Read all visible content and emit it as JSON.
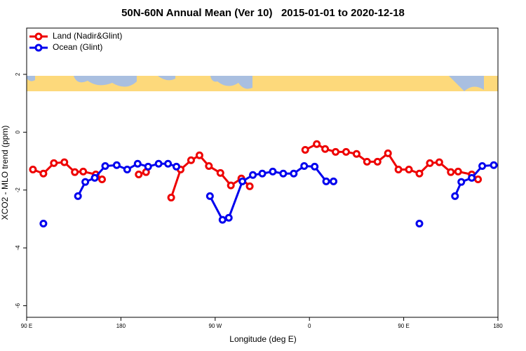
{
  "chart_data": {
    "type": "line",
    "title": "50N-60N Annual Mean (Ver 10)   2015-01-01 to 2020-12-18",
    "x_label": "Longitude (deg E)",
    "y_label": "XCO2 - MLO trend (ppm)",
    "xlim": [
      90,
      540
    ],
    "ylim": [
      -6.4,
      3.6
    ],
    "xticks": [
      {
        "value": 90,
        "label": "90 E"
      },
      {
        "value": 180,
        "label": "180"
      },
      {
        "value": 270,
        "label": "90 W"
      },
      {
        "value": 360,
        "label": "0"
      },
      {
        "value": 450,
        "label": "90 E"
      },
      {
        "value": 540,
        "label": "180"
      }
    ],
    "yticks": [
      2,
      0,
      -2,
      -4,
      -6
    ],
    "legend": "top-left",
    "series": [
      {
        "name": "Land (Nadir&Glint)",
        "color": "#ee0000",
        "x": [
          96,
          106,
          116,
          126,
          136,
          144,
          156,
          162,
          null,
          197,
          204,
          null,
          228,
          237,
          247,
          255,
          264,
          275,
          285,
          295,
          303,
          null,
          356,
          367,
          375,
          385,
          395,
          405,
          415,
          425,
          435,
          445,
          455,
          465,
          475,
          484,
          495,
          502,
          515,
          521
        ],
        "values": [
          -1.29,
          -1.43,
          -1.07,
          -1.04,
          -1.38,
          -1.36,
          -1.46,
          -1.63,
          null,
          -1.46,
          -1.38,
          null,
          -2.26,
          -1.29,
          -0.97,
          -0.8,
          -1.17,
          -1.41,
          -1.84,
          -1.6,
          -1.87,
          null,
          -0.61,
          -0.41,
          -0.58,
          -0.68,
          -0.68,
          -0.75,
          -1.02,
          -1.02,
          -0.73,
          -1.29,
          -1.29,
          -1.43,
          -1.07,
          -1.04,
          -1.38,
          -1.36,
          -1.46,
          -1.63
        ]
      },
      {
        "name": "Ocean (Glint)",
        "color": "#0000ee",
        "x": [
          106,
          null,
          139,
          146,
          155,
          165,
          176,
          186,
          196,
          206,
          216,
          225,
          233,
          null,
          265,
          277,
          283,
          296,
          306,
          315,
          325,
          335,
          345,
          355,
          365,
          376,
          383,
          null,
          465,
          null,
          499,
          505,
          515,
          525,
          536
        ],
        "values": [
          -3.16,
          null,
          -2.21,
          -1.72,
          -1.58,
          -1.17,
          -1.14,
          -1.29,
          -1.09,
          -1.19,
          -1.09,
          -1.09,
          -1.19,
          null,
          -2.21,
          -3.03,
          -2.96,
          -1.7,
          -1.48,
          -1.43,
          -1.36,
          -1.43,
          -1.43,
          -1.17,
          -1.19,
          -1.7,
          -1.7,
          null,
          -3.16,
          null,
          -2.21,
          -1.72,
          -1.58,
          -1.17,
          -1.14
        ]
      }
    ]
  }
}
